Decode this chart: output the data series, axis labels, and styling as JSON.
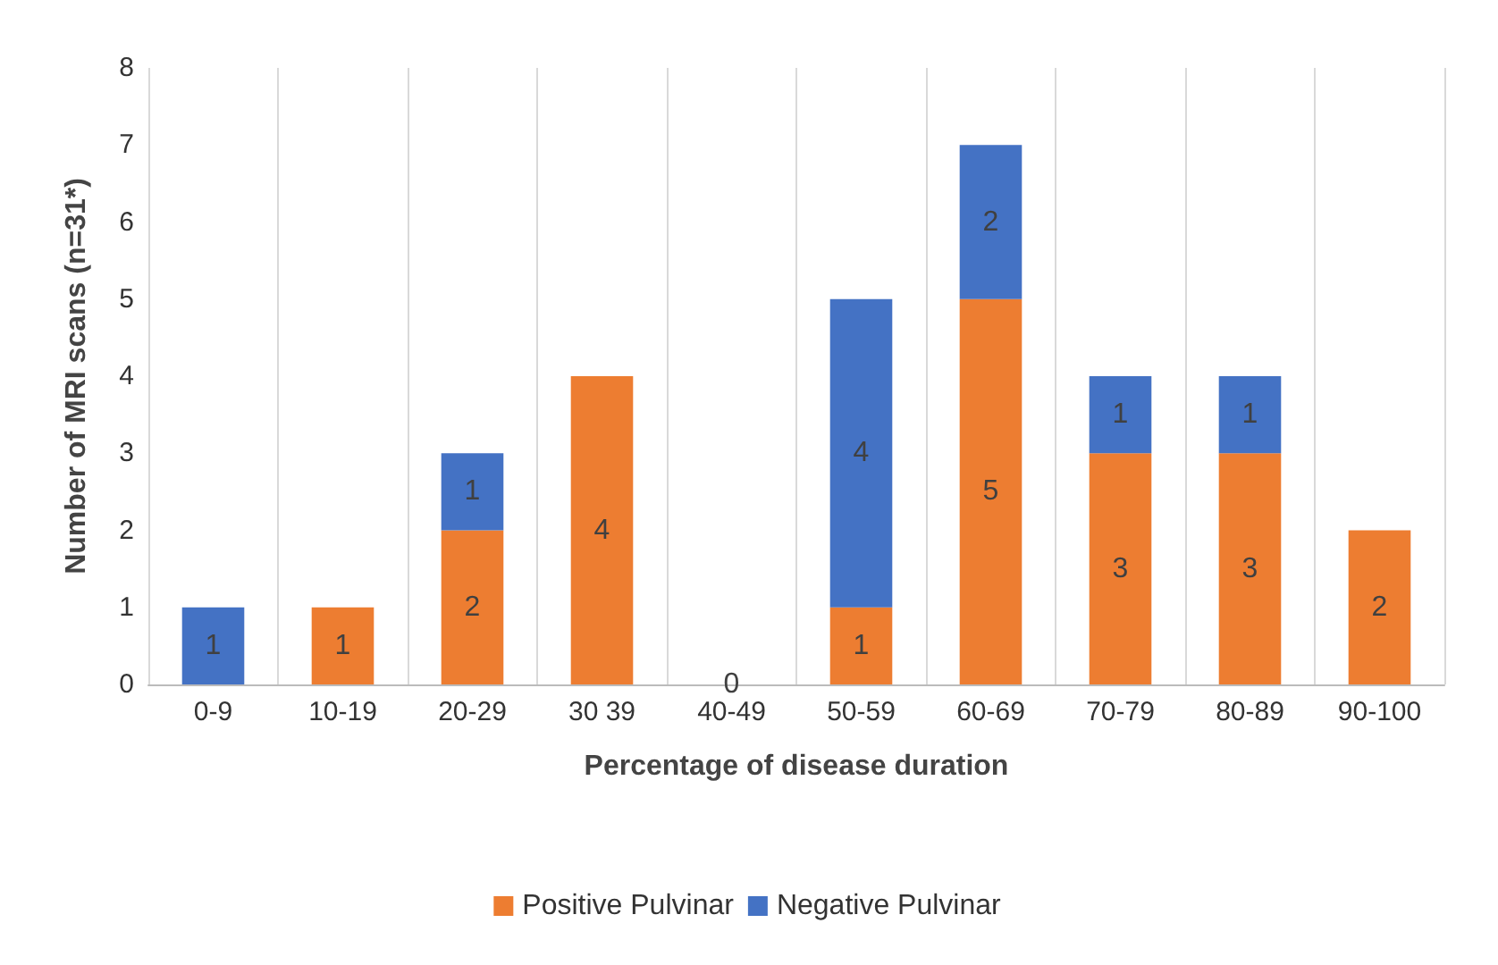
{
  "chart_data": {
    "type": "bar",
    "stacked": true,
    "xlabel": "Percentage of disease duration",
    "ylabel": "Number of MRI scans (n=31*)",
    "categories": [
      "0-9",
      "10-19",
      "20-29",
      "30 39",
      "40-49",
      "50-59",
      "60-69",
      "70-79",
      "80-89",
      "90-100"
    ],
    "series": [
      {
        "name": "Positive Pulvinar",
        "color": "#ed7d31",
        "values": [
          0,
          1,
          2,
          4,
          0,
          1,
          5,
          3,
          3,
          2
        ],
        "value_labels": [
          null,
          "1",
          "2",
          "4",
          "0",
          "1",
          "5",
          "3",
          "3",
          "2"
        ]
      },
      {
        "name": "Negative Pulvinar",
        "color": "#4472c4",
        "values": [
          1,
          0,
          1,
          0,
          0,
          4,
          2,
          1,
          1,
          0
        ],
        "value_labels": [
          "1",
          null,
          "1",
          null,
          null,
          "4",
          "2",
          "1",
          "1",
          null
        ]
      }
    ],
    "ylim": [
      0,
      8
    ],
    "yticks": [
      0,
      1,
      2,
      3,
      4,
      5,
      6,
      7,
      8
    ],
    "grid": "x",
    "legend": "bottom"
  }
}
